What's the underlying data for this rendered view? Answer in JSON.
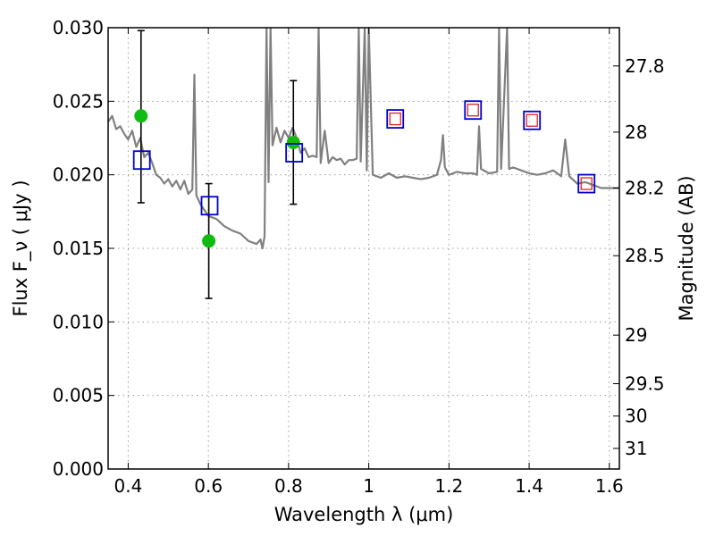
{
  "chart_data": {
    "type": "scatter",
    "xlabel": "Wavelength  λ (μm)",
    "ylabel_left": "Flux  F_ν  ( μJy )",
    "ylabel_right": "Magnitude (AB)",
    "xlim": [
      0.35,
      1.625
    ],
    "ylim": [
      0.0,
      0.03
    ],
    "grid": true,
    "x_ticks": [
      {
        "value": 0.4,
        "label": "0.4"
      },
      {
        "value": 0.6,
        "label": "0.6"
      },
      {
        "value": 0.8,
        "label": "0.8"
      },
      {
        "value": 1.0,
        "label": "1"
      },
      {
        "value": 1.2,
        "label": "1.2"
      },
      {
        "value": 1.4,
        "label": "1.4"
      },
      {
        "value": 1.6,
        "label": "1.6"
      }
    ],
    "y_ticks": [
      {
        "value": 0.0,
        "label": "0.000"
      },
      {
        "value": 0.005,
        "label": "0.005"
      },
      {
        "value": 0.01,
        "label": "0.010"
      },
      {
        "value": 0.015,
        "label": "0.015"
      },
      {
        "value": 0.02,
        "label": "0.020"
      },
      {
        "value": 0.025,
        "label": "0.025"
      },
      {
        "value": 0.03,
        "label": "0.030"
      }
    ],
    "right_ticks": [
      {
        "flux": 0.0274,
        "label": "27.8"
      },
      {
        "flux": 0.0229,
        "label": "28"
      },
      {
        "flux": 0.0191,
        "label": "28.2"
      },
      {
        "flux": 0.0145,
        "label": "28.5"
      },
      {
        "flux": 0.0091,
        "label": "29"
      },
      {
        "flux": 0.0058,
        "label": "29.5"
      },
      {
        "flux": 0.0036,
        "label": "30"
      },
      {
        "flux": 0.0014,
        "label": "31"
      }
    ],
    "series": [
      {
        "kind": "model",
        "color": "#808080",
        "x": [
          0.35,
          0.36,
          0.37,
          0.38,
          0.39,
          0.4,
          0.41,
          0.42,
          0.43,
          0.44,
          0.45,
          0.46,
          0.47,
          0.48,
          0.49,
          0.5,
          0.51,
          0.52,
          0.53,
          0.54,
          0.55,
          0.56,
          0.565,
          0.57,
          0.58,
          0.6,
          0.62,
          0.64,
          0.66,
          0.68,
          0.7,
          0.72,
          0.73,
          0.735,
          0.74,
          0.745,
          0.75,
          0.755,
          0.76,
          0.77,
          0.78,
          0.79,
          0.8,
          0.81,
          0.82,
          0.83,
          0.84,
          0.85,
          0.86,
          0.87,
          0.875,
          0.88,
          0.89,
          0.9,
          0.91,
          0.92,
          0.93,
          0.94,
          0.95,
          0.96,
          0.97,
          0.975,
          0.98,
          0.99,
          0.995,
          1.0,
          1.01,
          1.03,
          1.05,
          1.07,
          1.09,
          1.11,
          1.13,
          1.15,
          1.17,
          1.18,
          1.185,
          1.19,
          1.2,
          1.22,
          1.24,
          1.26,
          1.27,
          1.275,
          1.28,
          1.3,
          1.32,
          1.325,
          1.33,
          1.345,
          1.35,
          1.36,
          1.38,
          1.4,
          1.42,
          1.44,
          1.46,
          1.48,
          1.49,
          1.5,
          1.52,
          1.54,
          1.56,
          1.58,
          1.6,
          1.625
        ],
        "y": [
          0.0236,
          0.024,
          0.0231,
          0.0233,
          0.0228,
          0.0224,
          0.023,
          0.0219,
          0.0225,
          0.0212,
          0.0215,
          0.0208,
          0.02,
          0.0198,
          0.0194,
          0.0197,
          0.0192,
          0.0196,
          0.019,
          0.0196,
          0.0187,
          0.019,
          0.0268,
          0.0186,
          0.018,
          0.0172,
          0.017,
          0.0165,
          0.0162,
          0.016,
          0.0155,
          0.0153,
          0.0156,
          0.015,
          0.0158,
          0.03,
          0.0195,
          0.03,
          0.022,
          0.0232,
          0.0222,
          0.023,
          0.0225,
          0.0232,
          0.0225,
          0.0215,
          0.0218,
          0.0212,
          0.0213,
          0.0212,
          0.03,
          0.0208,
          0.023,
          0.0208,
          0.0212,
          0.021,
          0.0211,
          0.0207,
          0.021,
          0.021,
          0.0211,
          0.03,
          0.0209,
          0.03,
          0.0203,
          0.03,
          0.02,
          0.0198,
          0.0201,
          0.0198,
          0.0199,
          0.0198,
          0.0197,
          0.0198,
          0.02,
          0.021,
          0.0227,
          0.0205,
          0.02,
          0.0202,
          0.0201,
          0.0201,
          0.02,
          0.0233,
          0.0204,
          0.0201,
          0.0202,
          0.03,
          0.0204,
          0.03,
          0.0204,
          0.0205,
          0.0203,
          0.0201,
          0.02,
          0.0201,
          0.0203,
          0.0199,
          0.0224,
          0.0199,
          0.0194,
          0.0195,
          0.0193,
          0.0191,
          0.0191,
          0.0191
        ]
      },
      {
        "kind": "photometry-ground",
        "marker": "circle",
        "color": "#11bb11",
        "points": [
          {
            "x": 0.432,
            "y": 0.024,
            "err_low": 0.0181,
            "err_high": 0.0298
          },
          {
            "x": 0.601,
            "y": 0.0155,
            "err_low": 0.0116,
            "err_high": 0.0194
          },
          {
            "x": 0.812,
            "y": 0.0222,
            "err_low": 0.018,
            "err_high": 0.0264
          }
        ]
      },
      {
        "kind": "synthetic-photometry",
        "marker": "square",
        "color": "#0000cc",
        "points": [
          {
            "x": 0.434,
            "y": 0.021
          },
          {
            "x": 0.603,
            "y": 0.0179
          },
          {
            "x": 0.814,
            "y": 0.0215
          },
          {
            "x": 1.066,
            "y": 0.0238
          },
          {
            "x": 1.26,
            "y": 0.0244
          },
          {
            "x": 1.407,
            "y": 0.0237
          },
          {
            "x": 1.543,
            "y": 0.0194
          }
        ]
      },
      {
        "kind": "photometry-nir",
        "marker": "square",
        "color": "#dd2222",
        "points": [
          {
            "x": 1.066,
            "y": 0.0238
          },
          {
            "x": 1.26,
            "y": 0.0244
          },
          {
            "x": 1.407,
            "y": 0.0237
          },
          {
            "x": 1.543,
            "y": 0.0194
          }
        ]
      }
    ]
  }
}
